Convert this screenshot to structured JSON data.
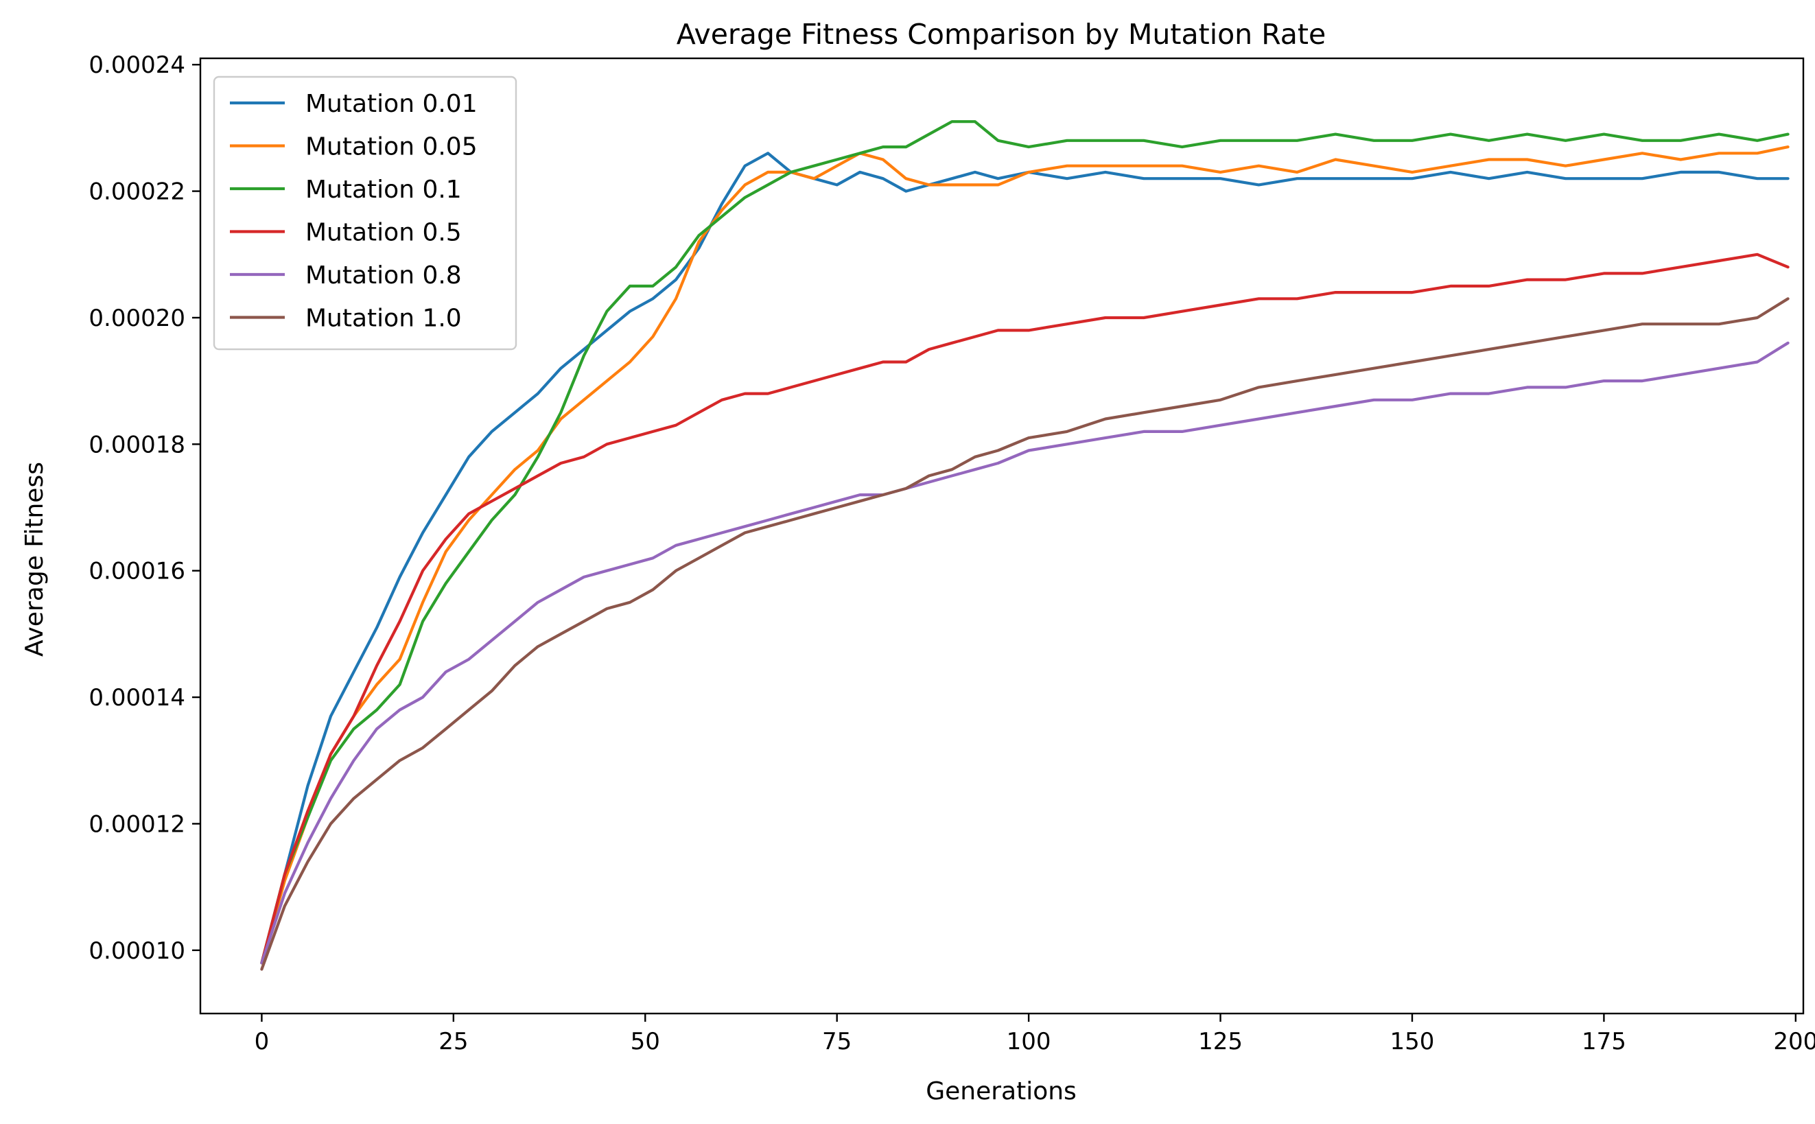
{
  "chart_data": {
    "type": "line",
    "title": "Average Fitness Comparison by Mutation Rate",
    "xlabel": "Generations",
    "ylabel": "Average Fitness",
    "xlim": [
      -8,
      201
    ],
    "ylim": [
      9e-05,
      0.000241
    ],
    "xticks": [
      0,
      25,
      50,
      75,
      100,
      125,
      150,
      175,
      200
    ],
    "xtick_labels": [
      "0",
      "25",
      "50",
      "75",
      "100",
      "125",
      "150",
      "175",
      "200"
    ],
    "yticks": [
      0.0001,
      0.00012,
      0.00014,
      0.00016,
      0.00018,
      0.0002,
      0.00022,
      0.00024
    ],
    "ytick_labels": [
      "0.00010",
      "0.00012",
      "0.00014",
      "0.00016",
      "0.00018",
      "0.00020",
      "0.00022",
      "0.00024"
    ],
    "grid": false,
    "legend_position": "top-left",
    "x": [
      0,
      3,
      6,
      9,
      12,
      15,
      18,
      21,
      24,
      27,
      30,
      33,
      36,
      39,
      42,
      45,
      48,
      51,
      54,
      57,
      60,
      63,
      66,
      69,
      72,
      75,
      78,
      81,
      84,
      87,
      90,
      93,
      96,
      100,
      105,
      110,
      115,
      120,
      125,
      130,
      135,
      140,
      145,
      150,
      155,
      160,
      165,
      170,
      175,
      180,
      185,
      190,
      195,
      199
    ],
    "series": [
      {
        "name": "Mutation 0.01",
        "color": "#1f77b4",
        "values": [
          9.8e-05,
          0.000112,
          0.000126,
          0.000137,
          0.000144,
          0.000151,
          0.000159,
          0.000166,
          0.000172,
          0.000178,
          0.000182,
          0.000185,
          0.000188,
          0.000192,
          0.000195,
          0.000198,
          0.000201,
          0.000203,
          0.000206,
          0.000211,
          0.000218,
          0.000224,
          0.000226,
          0.000223,
          0.000222,
          0.000221,
          0.000223,
          0.000222,
          0.00022,
          0.000221,
          0.000222,
          0.000223,
          0.000222,
          0.000223,
          0.000222,
          0.000223,
          0.000222,
          0.000222,
          0.000222,
          0.000221,
          0.000222,
          0.000222,
          0.000222,
          0.000222,
          0.000223,
          0.000222,
          0.000223,
          0.000222,
          0.000222,
          0.000222,
          0.000223,
          0.000223,
          0.000222,
          0.000222
        ]
      },
      {
        "name": "Mutation 0.05",
        "color": "#ff7f0e",
        "values": [
          9.8e-05,
          0.000111,
          0.000121,
          0.000131,
          0.000137,
          0.000142,
          0.000146,
          0.000155,
          0.000163,
          0.000168,
          0.000172,
          0.000176,
          0.000179,
          0.000184,
          0.000187,
          0.00019,
          0.000193,
          0.000197,
          0.000203,
          0.000212,
          0.000217,
          0.000221,
          0.000223,
          0.000223,
          0.000222,
          0.000224,
          0.000226,
          0.000225,
          0.000222,
          0.000221,
          0.000221,
          0.000221,
          0.000221,
          0.000223,
          0.000224,
          0.000224,
          0.000224,
          0.000224,
          0.000223,
          0.000224,
          0.000223,
          0.000225,
          0.000224,
          0.000223,
          0.000224,
          0.000225,
          0.000225,
          0.000224,
          0.000225,
          0.000226,
          0.000225,
          0.000226,
          0.000226,
          0.000227
        ]
      },
      {
        "name": "Mutation 0.1",
        "color": "#2ca02c",
        "values": [
          9.8e-05,
          0.000112,
          0.000121,
          0.00013,
          0.000135,
          0.000138,
          0.000142,
          0.000152,
          0.000158,
          0.000163,
          0.000168,
          0.000172,
          0.000178,
          0.000185,
          0.000194,
          0.000201,
          0.000205,
          0.000205,
          0.000208,
          0.000213,
          0.000216,
          0.000219,
          0.000221,
          0.000223,
          0.000224,
          0.000225,
          0.000226,
          0.000227,
          0.000227,
          0.000229,
          0.000231,
          0.000231,
          0.000228,
          0.000227,
          0.000228,
          0.000228,
          0.000228,
          0.000227,
          0.000228,
          0.000228,
          0.000228,
          0.000229,
          0.000228,
          0.000228,
          0.000229,
          0.000228,
          0.000229,
          0.000228,
          0.000229,
          0.000228,
          0.000228,
          0.000229,
          0.000228,
          0.000229
        ]
      },
      {
        "name": "Mutation 0.5",
        "color": "#d62728",
        "values": [
          9.8e-05,
          0.000112,
          0.000122,
          0.000131,
          0.000137,
          0.000145,
          0.000152,
          0.00016,
          0.000165,
          0.000169,
          0.000171,
          0.000173,
          0.000175,
          0.000177,
          0.000178,
          0.00018,
          0.000181,
          0.000182,
          0.000183,
          0.000185,
          0.000187,
          0.000188,
          0.000188,
          0.000189,
          0.00019,
          0.000191,
          0.000192,
          0.000193,
          0.000193,
          0.000195,
          0.000196,
          0.000197,
          0.000198,
          0.000198,
          0.000199,
          0.0002,
          0.0002,
          0.000201,
          0.000202,
          0.000203,
          0.000203,
          0.000204,
          0.000204,
          0.000204,
          0.000205,
          0.000205,
          0.000206,
          0.000206,
          0.000207,
          0.000207,
          0.000208,
          0.000209,
          0.00021,
          0.000208
        ]
      },
      {
        "name": "Mutation 0.8",
        "color": "#9467bd",
        "values": [
          9.8e-05,
          0.000109,
          0.000117,
          0.000124,
          0.00013,
          0.000135,
          0.000138,
          0.00014,
          0.000144,
          0.000146,
          0.000149,
          0.000152,
          0.000155,
          0.000157,
          0.000159,
          0.00016,
          0.000161,
          0.000162,
          0.000164,
          0.000165,
          0.000166,
          0.000167,
          0.000168,
          0.000169,
          0.00017,
          0.000171,
          0.000172,
          0.000172,
          0.000173,
          0.000174,
          0.000175,
          0.000176,
          0.000177,
          0.000179,
          0.00018,
          0.000181,
          0.000182,
          0.000182,
          0.000183,
          0.000184,
          0.000185,
          0.000186,
          0.000187,
          0.000187,
          0.000188,
          0.000188,
          0.000189,
          0.000189,
          0.00019,
          0.00019,
          0.000191,
          0.000192,
          0.000193,
          0.000196
        ]
      },
      {
        "name": "Mutation 1.0",
        "color": "#8c564b",
        "values": [
          9.7e-05,
          0.000107,
          0.000114,
          0.00012,
          0.000124,
          0.000127,
          0.00013,
          0.000132,
          0.000135,
          0.000138,
          0.000141,
          0.000145,
          0.000148,
          0.00015,
          0.000152,
          0.000154,
          0.000155,
          0.000157,
          0.00016,
          0.000162,
          0.000164,
          0.000166,
          0.000167,
          0.000168,
          0.000169,
          0.00017,
          0.000171,
          0.000172,
          0.000173,
          0.000175,
          0.000176,
          0.000178,
          0.000179,
          0.000181,
          0.000182,
          0.000184,
          0.000185,
          0.000186,
          0.000187,
          0.000189,
          0.00019,
          0.000191,
          0.000192,
          0.000193,
          0.000194,
          0.000195,
          0.000196,
          0.000197,
          0.000198,
          0.000199,
          0.000199,
          0.000199,
          0.0002,
          0.000203
        ]
      }
    ]
  }
}
